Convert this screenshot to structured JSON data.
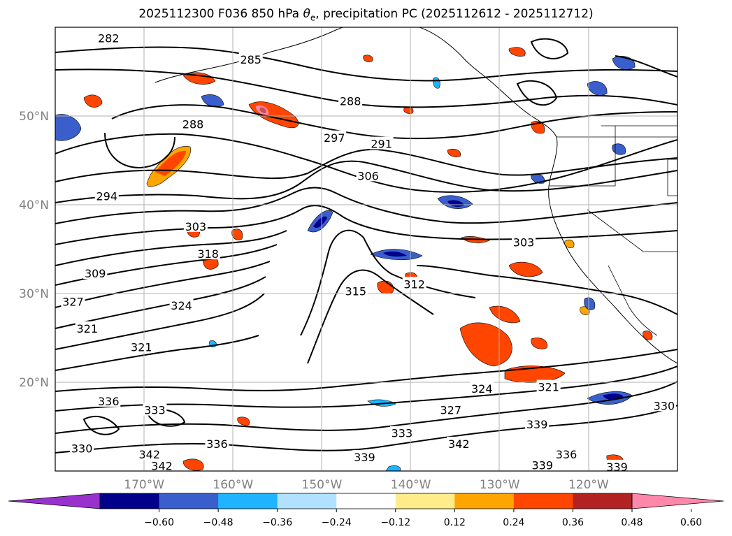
{
  "title": {
    "prefix": "2025112300 F036 850 hPa ",
    "theta_symbol": "θ",
    "theta_sub": "e",
    "suffix": ", precipitation PC (2025112612 - 2025112712)"
  },
  "map": {
    "lon_range": [
      -180,
      -110
    ],
    "lat_range": [
      10,
      60
    ],
    "lat_ticks": [
      {
        "value": 50,
        "label": "50°N"
      },
      {
        "value": 40,
        "label": "40°N"
      },
      {
        "value": 30,
        "label": "30°N"
      },
      {
        "value": 20,
        "label": "20°N"
      }
    ],
    "lon_ticks": [
      {
        "value": -170,
        "label": "170°W"
      },
      {
        "value": -160,
        "label": "160°W"
      },
      {
        "value": -150,
        "label": "150°W"
      },
      {
        "value": -140,
        "label": "140°W"
      },
      {
        "value": -130,
        "label": "130°W"
      },
      {
        "value": -120,
        "label": "120°W"
      }
    ],
    "grid": true
  },
  "contour_labels": [
    {
      "text": "282",
      "lon": -174.0,
      "lat": 58.7
    },
    {
      "text": "285",
      "lon": -158.0,
      "lat": 56.3
    },
    {
      "text": "288",
      "lon": -164.5,
      "lat": 49.0
    },
    {
      "text": "288",
      "lon": -146.8,
      "lat": 51.6
    },
    {
      "text": "297",
      "lon": -148.6,
      "lat": 47.5
    },
    {
      "text": "291",
      "lon": -143.3,
      "lat": 46.8
    },
    {
      "text": "306",
      "lon": -144.8,
      "lat": 43.2
    },
    {
      "text": "294",
      "lon": -174.2,
      "lat": 40.9
    },
    {
      "text": "303",
      "lon": -164.2,
      "lat": 37.5
    },
    {
      "text": "303",
      "lon": -127.3,
      "lat": 35.7
    },
    {
      "text": "318",
      "lon": -162.8,
      "lat": 34.4
    },
    {
      "text": "309",
      "lon": -175.5,
      "lat": 32.2
    },
    {
      "text": "312",
      "lon": -139.6,
      "lat": 31.0
    },
    {
      "text": "315",
      "lon": -146.2,
      "lat": 30.2
    },
    {
      "text": "327",
      "lon": -178.0,
      "lat": 29.0
    },
    {
      "text": "324",
      "lon": -165.8,
      "lat": 28.6
    },
    {
      "text": "321",
      "lon": -176.4,
      "lat": 26.0
    },
    {
      "text": "321",
      "lon": -170.3,
      "lat": 23.9
    },
    {
      "text": "324",
      "lon": -132.0,
      "lat": 19.2
    },
    {
      "text": "321",
      "lon": -124.5,
      "lat": 19.4
    },
    {
      "text": "336",
      "lon": -174.0,
      "lat": 17.8
    },
    {
      "text": "333",
      "lon": -168.8,
      "lat": 16.8
    },
    {
      "text": "327",
      "lon": -135.5,
      "lat": 16.8
    },
    {
      "text": "339",
      "lon": -125.8,
      "lat": 15.2
    },
    {
      "text": "330",
      "lon": -111.5,
      "lat": 17.3
    },
    {
      "text": "333",
      "lon": -141.0,
      "lat": 14.2
    },
    {
      "text": "342",
      "lon": -134.6,
      "lat": 13.0
    },
    {
      "text": "336",
      "lon": -161.8,
      "lat": 13.0
    },
    {
      "text": "330",
      "lon": -177.0,
      "lat": 12.5
    },
    {
      "text": "342",
      "lon": -169.4,
      "lat": 11.8
    },
    {
      "text": "342",
      "lon": -168.0,
      "lat": 10.5
    },
    {
      "text": "336",
      "lon": -122.5,
      "lat": 11.8
    },
    {
      "text": "339",
      "lon": -145.2,
      "lat": 11.5
    },
    {
      "text": "339",
      "lon": -125.2,
      "lat": 10.6
    },
    {
      "text": "339",
      "lon": -116.8,
      "lat": 10.4
    }
  ],
  "colorbar": {
    "colors": [
      "#9932cc",
      "#00008b",
      "#3a5fcd",
      "#1eb4ff",
      "#b0e2ff",
      "#ffffff",
      "#ffec8b",
      "#ffa500",
      "#ff4500",
      "#b22222",
      "#ff88aa"
    ],
    "ticks": [
      "−0.60",
      "−0.48",
      "−0.36",
      "−0.24",
      "−0.12",
      "0.12",
      "0.24",
      "0.36",
      "0.48",
      "0.60"
    ]
  }
}
